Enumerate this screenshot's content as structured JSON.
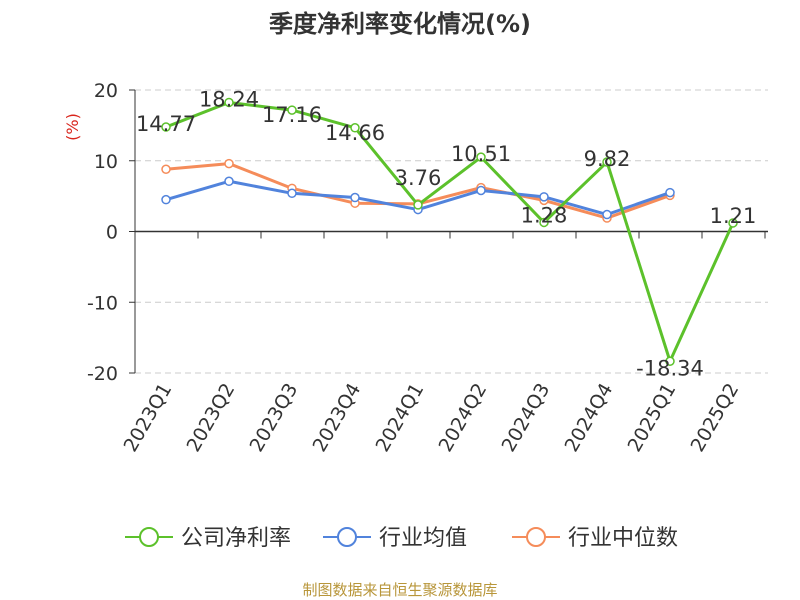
{
  "source_note": "制图数据来自恒生聚源数据库",
  "colors": {
    "company": "#5cc12b",
    "industry_avg": "#5183dc",
    "industry_median": "#f58c5a",
    "unit_label": "#d9251c"
  },
  "chart_data": {
    "type": "line",
    "title": "季度净利率变化情况(%)",
    "ylabel": "(%)",
    "categories": [
      "2023Q1",
      "2023Q2",
      "2023Q3",
      "2023Q4",
      "2024Q1",
      "2024Q2",
      "2024Q3",
      "2024Q4",
      "2025Q1",
      "2025Q2"
    ],
    "ylim": [
      -20,
      20
    ],
    "yticks": [
      20,
      10,
      0,
      -10,
      -20
    ],
    "grid": true,
    "legend_position": "bottom",
    "series": [
      {
        "name": "公司净利率",
        "values": [
          14.77,
          18.24,
          17.16,
          14.66,
          3.76,
          10.51,
          1.28,
          9.82,
          -18.34,
          1.21
        ],
        "labels": [
          "14.77",
          "18.24",
          "17.16",
          "14.66",
          "3.76",
          "10.51",
          "1.28",
          "9.82",
          "-18.34",
          "1.21"
        ]
      },
      {
        "name": "行业均值",
        "values": [
          4.5,
          7.1,
          5.4,
          4.8,
          3.1,
          5.8,
          4.9,
          2.4,
          5.5,
          null
        ]
      },
      {
        "name": "行业中位数",
        "values": [
          8.8,
          9.6,
          6.1,
          4.0,
          3.9,
          6.2,
          4.4,
          1.9,
          5.1,
          null
        ]
      }
    ]
  }
}
